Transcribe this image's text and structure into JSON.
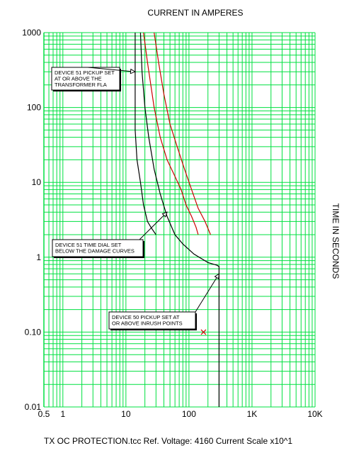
{
  "chart_data": {
    "type": "line",
    "scale": "log-log",
    "title": "CURRENT IN AMPERES",
    "ylabel": "TIME IN SECONDS",
    "xlim": [
      0.5,
      10000
    ],
    "ylim": [
      0.01,
      1000
    ],
    "grid": true,
    "x_ticks": [
      {
        "value": 0.5,
        "label": "0.5"
      },
      {
        "value": 1,
        "label": "1"
      },
      {
        "value": 10,
        "label": "10"
      },
      {
        "value": 100,
        "label": "100"
      },
      {
        "value": 1000,
        "label": "1K"
      },
      {
        "value": 10000,
        "label": "10K"
      }
    ],
    "y_ticks": [
      {
        "value": 1000,
        "label": "1000"
      },
      {
        "value": 100,
        "label": "100"
      },
      {
        "value": 10,
        "label": "10"
      },
      {
        "value": 1,
        "label": "1"
      },
      {
        "value": 0.1,
        "label": "0.10"
      },
      {
        "value": 0.01,
        "label": "0.01"
      }
    ],
    "series": [
      {
        "color": "#000000",
        "points": [
          [
            14,
            1000
          ],
          [
            14,
            100
          ],
          [
            14,
            50
          ],
          [
            15,
            20
          ],
          [
            17,
            10
          ],
          [
            19,
            5
          ],
          [
            22,
            3
          ],
          [
            25,
            2.5
          ],
          [
            30,
            2
          ]
        ]
      },
      {
        "color": "#000000",
        "points": [
          [
            17,
            1000
          ],
          [
            18,
            300
          ],
          [
            20,
            100
          ],
          [
            23,
            40
          ],
          [
            28,
            15
          ],
          [
            35,
            7
          ],
          [
            45,
            3.5
          ],
          [
            60,
            2
          ],
          [
            80,
            1.5
          ],
          [
            120,
            1.1
          ],
          [
            200,
            0.85
          ],
          [
            280,
            0.78
          ],
          [
            300,
            0.75
          ],
          [
            300,
            0.01
          ]
        ]
      },
      {
        "color": "#cc0000",
        "points": [
          [
            19,
            1000
          ],
          [
            22,
            400
          ],
          [
            28,
            100
          ],
          [
            35,
            40
          ],
          [
            45,
            20
          ],
          [
            60,
            12
          ],
          [
            75,
            8
          ],
          [
            90,
            5
          ],
          [
            110,
            3.5
          ],
          [
            130,
            2.5
          ],
          [
            140,
            2
          ]
        ]
      },
      {
        "color": "#cc0000",
        "points": [
          [
            28,
            1000
          ],
          [
            33,
            400
          ],
          [
            40,
            150
          ],
          [
            50,
            60
          ],
          [
            65,
            30
          ],
          [
            85,
            15
          ],
          [
            110,
            8
          ],
          [
            140,
            4.5
          ],
          [
            180,
            3
          ],
          [
            220,
            2
          ]
        ]
      }
    ],
    "markers": [
      {
        "symbol": "x",
        "color": "#cc0000",
        "x": 170,
        "y": 0.1
      }
    ],
    "annotations": [
      {
        "lines": [
          "DEVICE 51 PICKUP SET",
          "AT OR ABOVE THE",
          "TRANSFORMER FLA"
        ],
        "target": [
          14,
          300
        ]
      },
      {
        "lines": [
          "DEVICE 51 TIME DIAL SET",
          "BELOW THE DAMAGE CURVES"
        ],
        "target": [
          45,
          4.0
        ]
      },
      {
        "lines": [
          "DEVICE 50 PICKUP SET AT",
          "OR ABOVE INRUSH POINTS"
        ],
        "target": [
          300,
          0.6
        ]
      }
    ],
    "footer": "TX OC PROTECTION.tcc   Ref. Voltage: 4160   Current Scale x10^1"
  }
}
